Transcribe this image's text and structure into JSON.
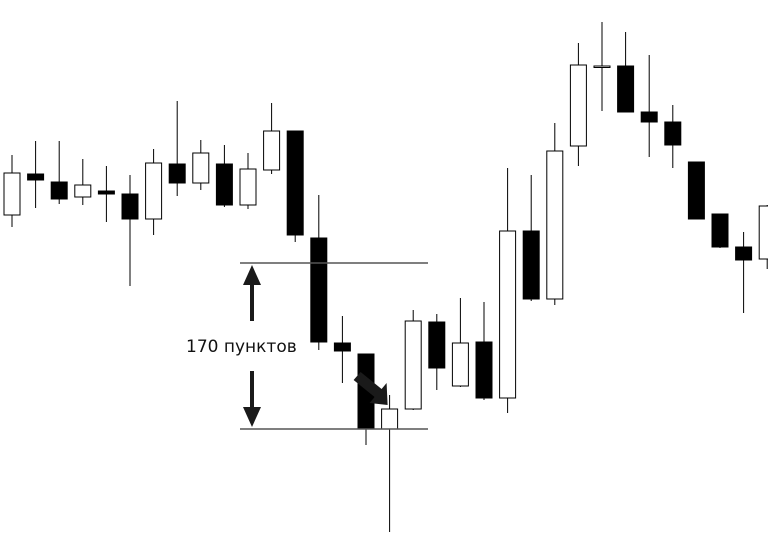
{
  "chart_data": {
    "type": "candlestick",
    "ylim": [
      0,
      541
    ],
    "grid": false,
    "candles": [
      {
        "open": 326,
        "close": 368,
        "high": 386,
        "low": 314,
        "color": "white"
      },
      {
        "open": 367,
        "close": 361,
        "high": 400,
        "low": 333,
        "color": "black"
      },
      {
        "open": 359,
        "close": 342,
        "high": 400,
        "low": 337,
        "color": "black"
      },
      {
        "open": 344,
        "close": 356,
        "high": 382,
        "low": 336,
        "color": "white"
      },
      {
        "open": 350,
        "close": 347,
        "high": 375,
        "low": 319,
        "color": "black"
      },
      {
        "open": 347,
        "close": 322,
        "high": 366,
        "low": 255,
        "color": "black"
      },
      {
        "open": 322,
        "close": 378,
        "high": 392,
        "low": 306,
        "color": "white"
      },
      {
        "open": 377,
        "close": 358,
        "high": 440,
        "low": 345,
        "color": "black"
      },
      {
        "open": 358,
        "close": 388,
        "high": 401,
        "low": 351,
        "color": "white"
      },
      {
        "open": 377,
        "close": 336,
        "high": 396,
        "low": 334,
        "color": "black"
      },
      {
        "open": 336,
        "close": 372,
        "high": 388,
        "low": 332,
        "color": "white"
      },
      {
        "open": 371,
        "close": 410,
        "high": 438,
        "low": 367,
        "color": "white"
      },
      {
        "open": 410,
        "close": 306,
        "high": 410,
        "low": 299,
        "color": "black"
      },
      {
        "open": 303,
        "close": 199,
        "high": 346,
        "low": 191,
        "color": "black"
      },
      {
        "open": 198,
        "close": 190,
        "high": 225,
        "low": 158,
        "color": "black"
      },
      {
        "open": 187,
        "close": 112,
        "high": 187,
        "low": 96,
        "color": "black"
      },
      {
        "open": 112,
        "close": 132,
        "high": 146,
        "low": 9,
        "color": "white"
      },
      {
        "open": 132,
        "close": 220,
        "high": 231,
        "low": 131,
        "color": "white"
      },
      {
        "open": 219,
        "close": 173,
        "high": 227,
        "low": 151,
        "color": "black"
      },
      {
        "open": 155,
        "close": 198,
        "high": 243,
        "low": 154,
        "color": "white"
      },
      {
        "open": 199,
        "close": 143,
        "high": 239,
        "low": 141,
        "color": "black"
      },
      {
        "open": 143,
        "close": 310,
        "high": 373,
        "low": 128,
        "color": "white"
      },
      {
        "open": 310,
        "close": 242,
        "high": 366,
        "low": 240,
        "color": "black"
      },
      {
        "open": 242,
        "close": 390,
        "high": 418,
        "low": 236,
        "color": "white"
      },
      {
        "open": 395,
        "close": 476,
        "high": 498,
        "low": 375,
        "color": "white"
      },
      {
        "open": 475,
        "close": 475,
        "high": 519,
        "low": 430,
        "color": "white"
      },
      {
        "open": 475,
        "close": 429,
        "high": 509,
        "low": 429,
        "color": "black"
      },
      {
        "open": 429,
        "close": 419,
        "high": 486,
        "low": 384,
        "color": "black"
      },
      {
        "open": 419,
        "close": 396,
        "high": 436,
        "low": 373,
        "color": "black"
      },
      {
        "open": 379,
        "close": 322,
        "high": 379,
        "low": 322,
        "color": "black"
      },
      {
        "open": 327,
        "close": 294,
        "high": 327,
        "low": 293,
        "color": "black"
      },
      {
        "open": 294,
        "close": 281,
        "high": 309,
        "low": 228,
        "color": "black"
      },
      {
        "open": 282,
        "close": 335,
        "high": 336,
        "low": 272,
        "color": "white"
      }
    ],
    "annotation": {
      "label": "170 пунктов",
      "upper": 278,
      "lower": 112,
      "signal_candle": 16
    }
  },
  "colors": {
    "bull_fill": "#ffffff",
    "bear_fill": "#000000",
    "stroke": "#000000",
    "level_line": "#555555",
    "arrow": "#1a1a1a"
  }
}
